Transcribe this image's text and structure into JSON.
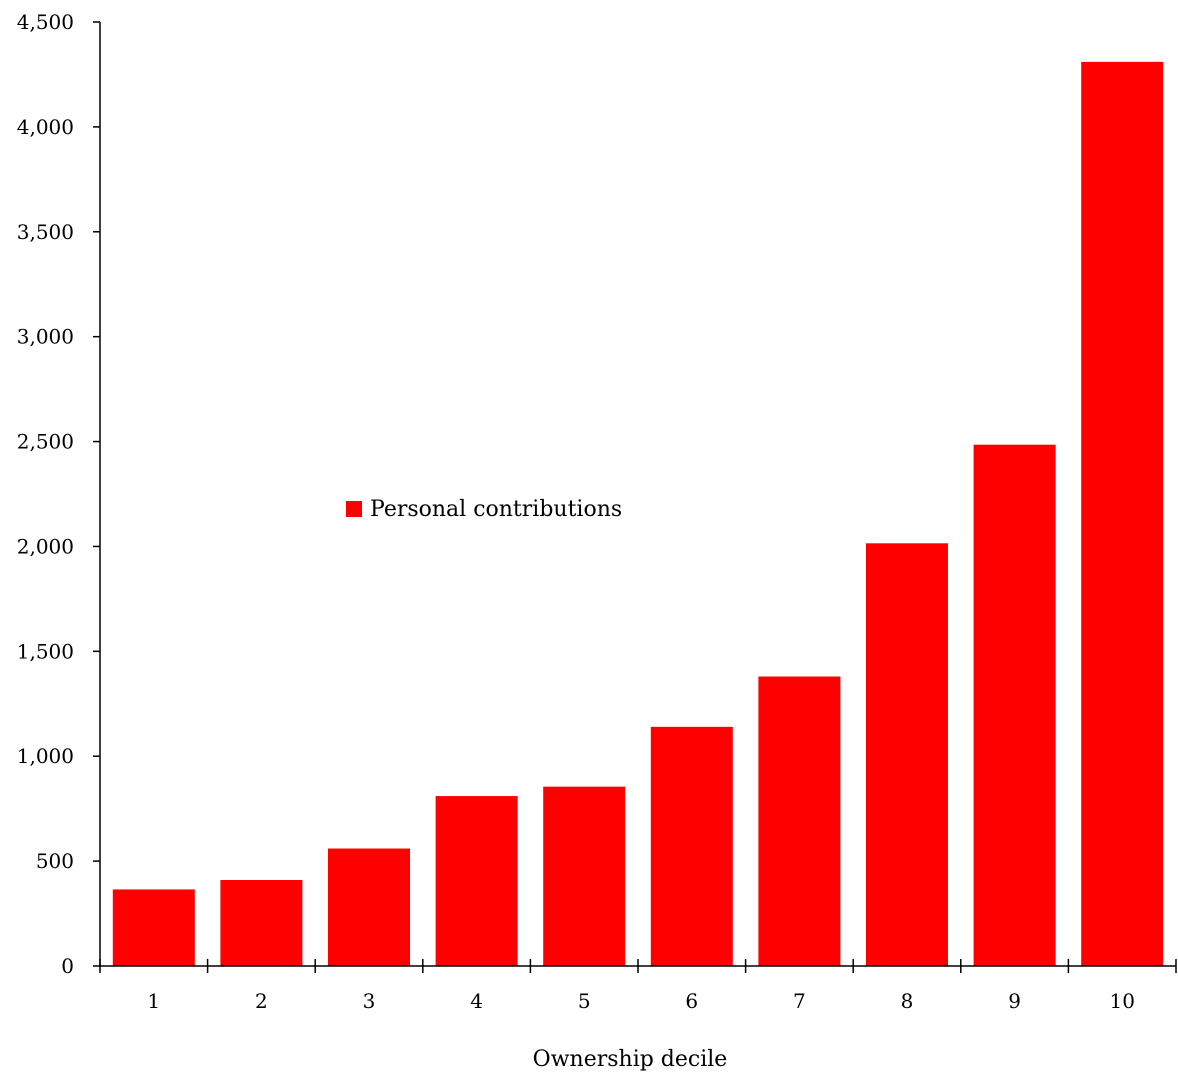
{
  "chart_data": {
    "type": "bar",
    "title": "",
    "xlabel": "Ownership decile",
    "ylabel": "",
    "categories": [
      "1",
      "2",
      "3",
      "4",
      "5",
      "6",
      "7",
      "8",
      "9",
      "10"
    ],
    "series": [
      {
        "name": "Personal contributions",
        "color": "#ff0000",
        "values": [
          365,
          410,
          560,
          810,
          855,
          1140,
          1380,
          2015,
          2485,
          4310
        ]
      }
    ],
    "ylim": [
      0,
      4500
    ],
    "yticks": [
      0,
      500,
      1000,
      1500,
      2000,
      2500,
      3000,
      3500,
      4000,
      4500
    ],
    "ytick_labels": [
      "0",
      "500",
      "1,000",
      "1,500",
      "2,000",
      "2,500",
      "3,000",
      "3,500",
      "4,000",
      "4,500"
    ],
    "grid": false,
    "legend_position": "center-left"
  }
}
